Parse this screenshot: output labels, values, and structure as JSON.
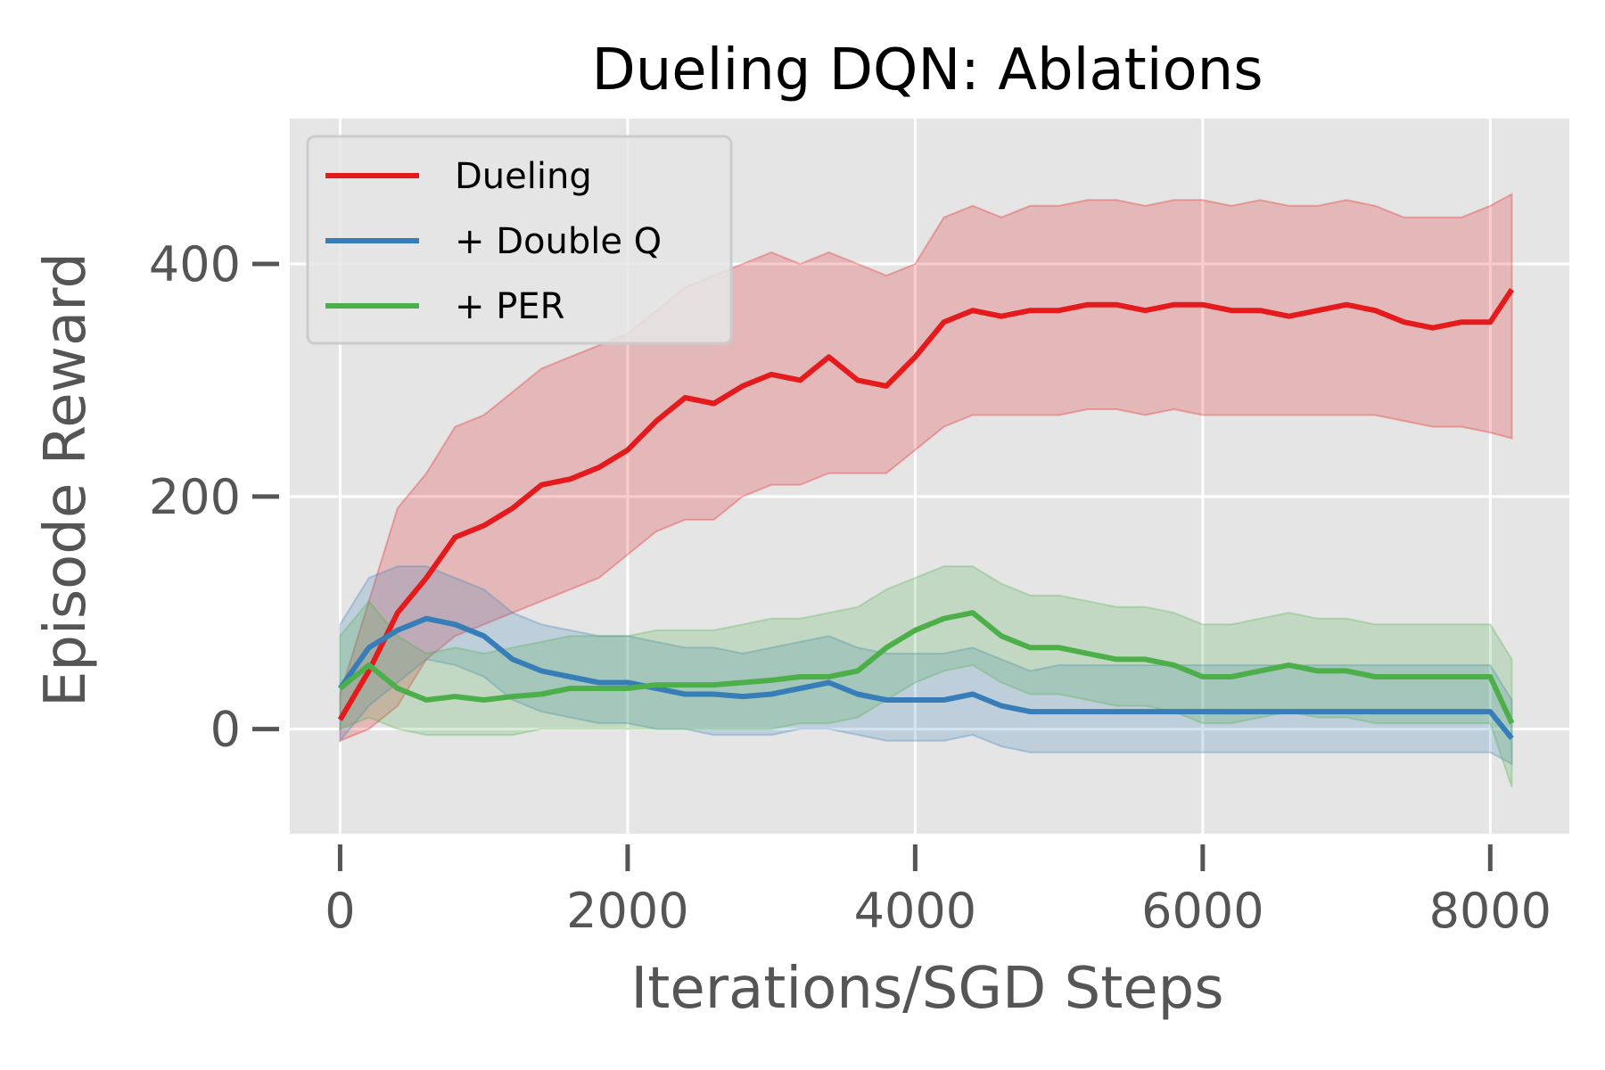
{
  "chart_data": {
    "type": "line",
    "title": "Dueling DQN: Ablations",
    "xlabel": "Iterations/SGD Steps",
    "ylabel": "Episode Reward",
    "xlim": [
      -350,
      8550
    ],
    "ylim": [
      -90,
      525
    ],
    "xticks": [
      0,
      2000,
      4000,
      6000,
      8000
    ],
    "xtick_labels": [
      "0",
      "2000",
      "4000",
      "6000",
      "8000"
    ],
    "yticks": [
      0,
      200,
      400
    ],
    "ytick_labels": [
      "0",
      "200",
      "400"
    ],
    "grid": true,
    "background": "#e5e5e5",
    "legend_position": "top-left",
    "series": [
      {
        "name": "Dueling",
        "color": "#e41a1c",
        "x": [
          0,
          200,
          400,
          600,
          800,
          1000,
          1200,
          1400,
          1600,
          1800,
          2000,
          2200,
          2400,
          2600,
          2800,
          3000,
          3200,
          3400,
          3600,
          3800,
          4000,
          4200,
          4400,
          4600,
          4800,
          5000,
          5200,
          5400,
          5600,
          5800,
          6000,
          6200,
          6400,
          6600,
          6800,
          7000,
          7200,
          7400,
          7600,
          7800,
          8000,
          8150
        ],
        "mean": [
          8,
          50,
          100,
          130,
          165,
          175,
          190,
          210,
          215,
          225,
          240,
          265,
          285,
          280,
          295,
          305,
          300,
          320,
          300,
          295,
          320,
          350,
          360,
          355,
          360,
          360,
          365,
          365,
          360,
          365,
          365,
          360,
          360,
          355,
          360,
          365,
          360,
          350,
          345,
          350,
          350,
          378
        ],
        "lower": [
          -10,
          0,
          20,
          60,
          80,
          90,
          100,
          110,
          120,
          130,
          150,
          170,
          180,
          180,
          200,
          210,
          210,
          220,
          220,
          220,
          240,
          260,
          270,
          270,
          270,
          270,
          275,
          275,
          270,
          275,
          270,
          270,
          270,
          270,
          270,
          270,
          270,
          265,
          260,
          260,
          255,
          250
        ],
        "upper": [
          30,
          110,
          190,
          220,
          260,
          270,
          290,
          310,
          320,
          330,
          340,
          360,
          380,
          390,
          400,
          410,
          400,
          410,
          400,
          390,
          400,
          440,
          450,
          440,
          450,
          450,
          455,
          455,
          450,
          455,
          455,
          450,
          455,
          450,
          450,
          455,
          450,
          440,
          440,
          440,
          450,
          460
        ]
      },
      {
        "name": "+ Double Q",
        "color": "#377eb8",
        "x": [
          0,
          200,
          400,
          600,
          800,
          1000,
          1200,
          1400,
          1600,
          1800,
          2000,
          2200,
          2400,
          2600,
          2800,
          3000,
          3200,
          3400,
          3600,
          3800,
          4000,
          4200,
          4400,
          4600,
          4800,
          5000,
          5200,
          5400,
          5600,
          5800,
          6000,
          6200,
          6400,
          6600,
          6800,
          7000,
          7200,
          7400,
          7600,
          7800,
          8000,
          8150
        ],
        "mean": [
          35,
          70,
          85,
          95,
          90,
          80,
          60,
          50,
          45,
          40,
          40,
          35,
          30,
          30,
          28,
          30,
          35,
          40,
          30,
          25,
          25,
          25,
          30,
          20,
          15,
          15,
          15,
          15,
          15,
          15,
          15,
          15,
          15,
          15,
          15,
          15,
          15,
          15,
          15,
          15,
          15,
          -8
        ],
        "lower": [
          -10,
          20,
          40,
          60,
          55,
          45,
          25,
          15,
          10,
          5,
          5,
          0,
          0,
          -5,
          -5,
          -5,
          0,
          0,
          -5,
          -10,
          -10,
          -10,
          -5,
          -15,
          -20,
          -20,
          -20,
          -20,
          -20,
          -20,
          -20,
          -20,
          -20,
          -20,
          -20,
          -20,
          -20,
          -20,
          -20,
          -20,
          -20,
          -30
        ],
        "upper": [
          90,
          130,
          140,
          140,
          130,
          120,
          100,
          90,
          85,
          80,
          80,
          75,
          70,
          70,
          65,
          70,
          75,
          80,
          70,
          65,
          65,
          65,
          70,
          60,
          50,
          55,
          55,
          55,
          55,
          55,
          55,
          55,
          55,
          55,
          55,
          55,
          55,
          55,
          55,
          55,
          55,
          25
        ]
      },
      {
        "name": "+ PER",
        "color": "#4daf4a",
        "x": [
          0,
          200,
          400,
          600,
          800,
          1000,
          1200,
          1400,
          1600,
          1800,
          2000,
          2200,
          2400,
          2600,
          2800,
          3000,
          3200,
          3400,
          3600,
          3800,
          4000,
          4200,
          4400,
          4600,
          4800,
          5000,
          5200,
          5400,
          5600,
          5800,
          6000,
          6200,
          6400,
          6600,
          6800,
          7000,
          7200,
          7400,
          7600,
          7800,
          8000,
          8150
        ],
        "mean": [
          35,
          55,
          35,
          25,
          28,
          25,
          28,
          30,
          35,
          35,
          35,
          38,
          38,
          38,
          40,
          42,
          45,
          45,
          50,
          70,
          85,
          95,
          100,
          80,
          70,
          70,
          65,
          60,
          60,
          55,
          45,
          45,
          50,
          55,
          50,
          50,
          45,
          45,
          45,
          45,
          45,
          5
        ],
        "lower": [
          0,
          10,
          0,
          -5,
          -5,
          -5,
          -5,
          0,
          0,
          0,
          0,
          0,
          0,
          0,
          0,
          0,
          5,
          5,
          10,
          25,
          40,
          50,
          55,
          40,
          30,
          30,
          25,
          20,
          20,
          15,
          5,
          5,
          10,
          15,
          10,
          10,
          5,
          5,
          5,
          5,
          5,
          -50
        ],
        "upper": [
          80,
          110,
          80,
          65,
          70,
          65,
          70,
          75,
          80,
          80,
          80,
          85,
          85,
          85,
          90,
          95,
          95,
          100,
          105,
          120,
          130,
          140,
          140,
          125,
          115,
          115,
          110,
          105,
          105,
          100,
          90,
          90,
          95,
          100,
          95,
          95,
          90,
          90,
          90,
          90,
          90,
          60
        ]
      }
    ]
  }
}
